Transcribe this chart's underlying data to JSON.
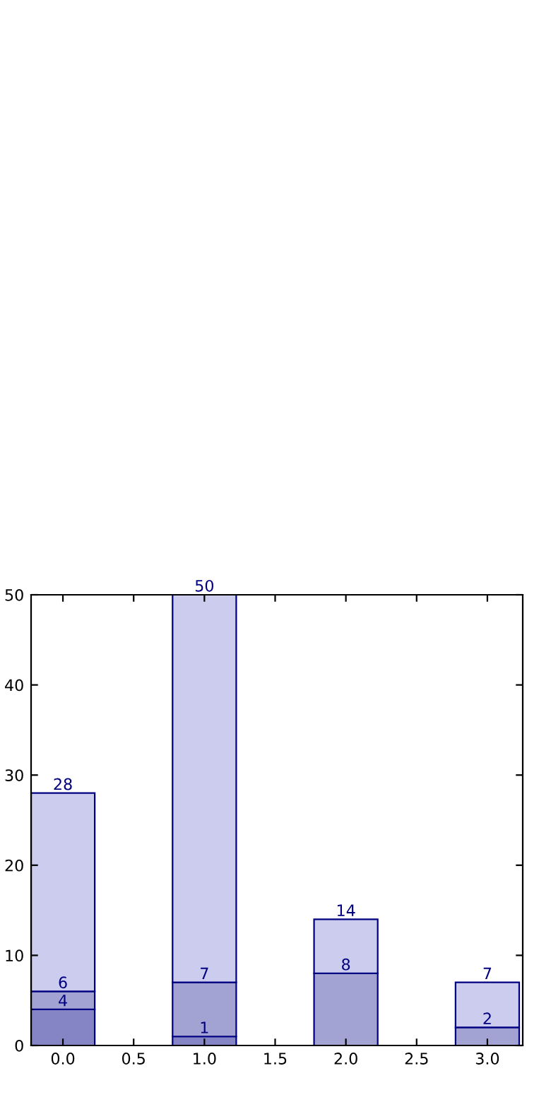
{
  "chart_data": {
    "type": "bar",
    "stacked": true,
    "x": [
      0,
      1,
      2,
      3
    ],
    "series": [
      {
        "color": "#8585c5",
        "values": [
          4,
          1,
          null,
          null
        ]
      },
      {
        "color": "#a3a3d3",
        "values": [
          2,
          6,
          8,
          2
        ]
      },
      {
        "color": "#ccccee",
        "values": [
          22,
          43,
          6,
          5
        ]
      }
    ],
    "annotations": [
      {
        "text": "4",
        "x": 0,
        "y": 4
      },
      {
        "text": "6",
        "x": 0,
        "y": 6
      },
      {
        "text": "28",
        "x": 0,
        "y": 28
      },
      {
        "text": "1",
        "x": 1,
        "y": 1
      },
      {
        "text": "7",
        "x": 1,
        "y": 7
      },
      {
        "text": "50",
        "x": 1,
        "y": 50
      },
      {
        "text": "8",
        "x": 2,
        "y": 8
      },
      {
        "text": "14",
        "x": 2,
        "y": 14
      },
      {
        "text": "2",
        "x": 3,
        "y": 2
      },
      {
        "text": "7",
        "x": 3,
        "y": 7
      }
    ],
    "xlim": [
      -0.225,
      3.25
    ],
    "xticks": [
      {
        "value": 0,
        "label": "0.0"
      },
      {
        "value": 0.5,
        "label": "0.5"
      },
      {
        "value": 1,
        "label": "1.0"
      },
      {
        "value": 1.5,
        "label": "1.5"
      },
      {
        "value": 2,
        "label": "2.0"
      },
      {
        "value": 2.5,
        "label": "2.5"
      },
      {
        "value": 3,
        "label": "3.0"
      }
    ],
    "ylim": [
      0,
      50
    ],
    "yticks": [
      0,
      10,
      20,
      30,
      40,
      50
    ],
    "grid": false,
    "legend": false
  }
}
